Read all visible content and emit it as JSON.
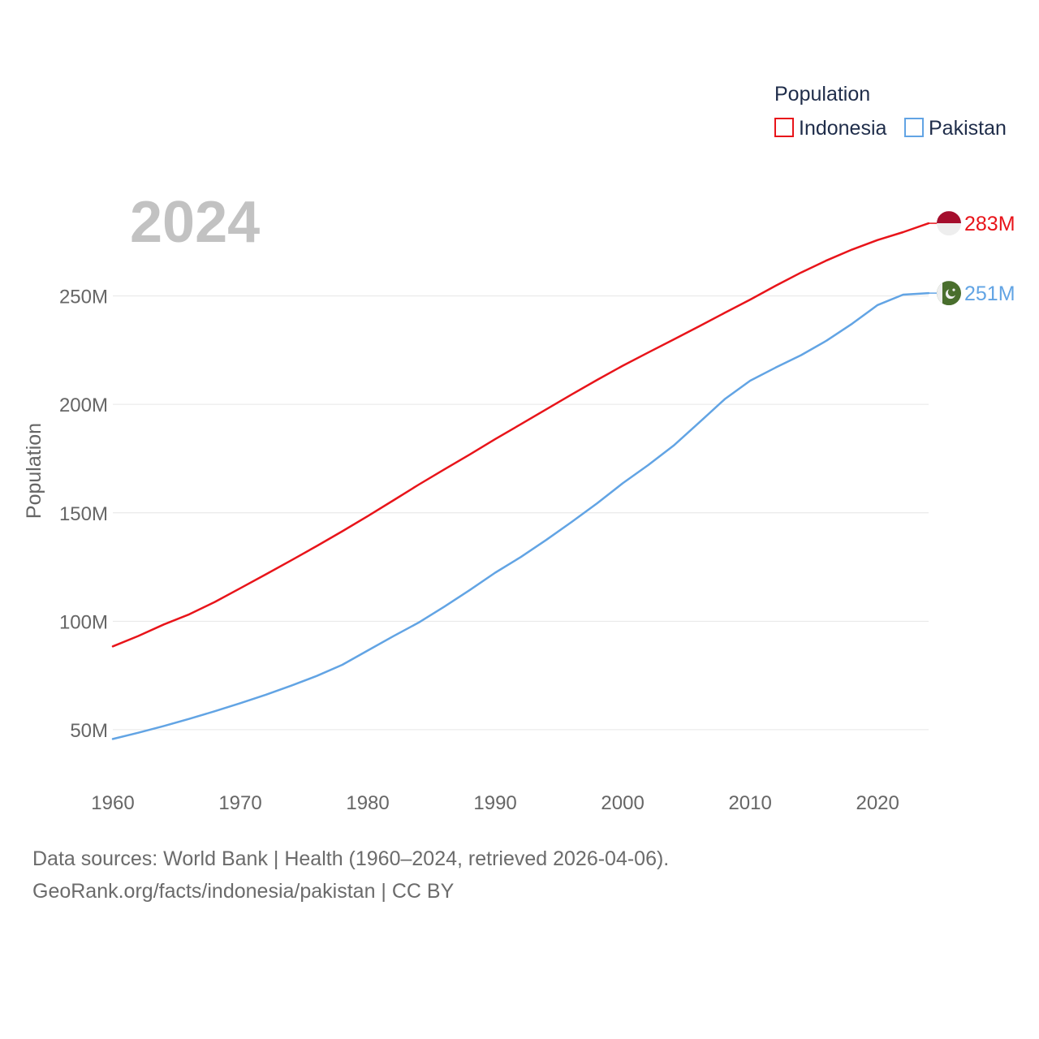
{
  "chart_data": {
    "type": "line",
    "year_label": "2024",
    "ylabel": "Population",
    "xlabel": "",
    "xlim": [
      1960,
      2024
    ],
    "ylim": [
      35,
      300
    ],
    "x_ticks": [
      1960,
      1970,
      1980,
      1990,
      2000,
      2010,
      2020
    ],
    "y_ticks": [
      {
        "value": 50,
        "label": "50M"
      },
      {
        "value": 100,
        "label": "100M"
      },
      {
        "value": 150,
        "label": "150M"
      },
      {
        "value": 200,
        "label": "200M"
      },
      {
        "value": 250,
        "label": "250M"
      }
    ],
    "legend": {
      "title": "Population",
      "position": "top-right",
      "entries": [
        "Indonesia",
        "Pakistan"
      ]
    },
    "units": "millions",
    "series": [
      {
        "name": "Indonesia",
        "color": "#e8141a",
        "end_label": "283M",
        "flag": "indonesia-flag",
        "x": [
          1960,
          1962,
          1964,
          1966,
          1968,
          1970,
          1972,
          1974,
          1976,
          1978,
          1980,
          1982,
          1984,
          1986,
          1988,
          1990,
          1992,
          1994,
          1996,
          1998,
          2000,
          2002,
          2004,
          2006,
          2008,
          2010,
          2012,
          2014,
          2016,
          2018,
          2020,
          2022,
          2024
        ],
        "values": [
          88.4,
          93.2,
          98.5,
          103.2,
          108.9,
          115.2,
          121.6,
          128.1,
          134.7,
          141.5,
          148.5,
          155.7,
          163.0,
          170.0,
          176.9,
          184.0,
          190.8,
          197.7,
          204.6,
          211.3,
          217.8,
          223.9,
          229.9,
          236.0,
          242.2,
          248.3,
          254.7,
          260.8,
          266.4,
          271.4,
          275.8,
          279.4,
          283.5
        ]
      },
      {
        "name": "Pakistan",
        "color": "#62a4e4",
        "end_label": "251M",
        "flag": "pakistan-flag",
        "x": [
          1960,
          1962,
          1964,
          1966,
          1968,
          1970,
          1972,
          1974,
          1976,
          1978,
          1980,
          1982,
          1984,
          1986,
          1988,
          1990,
          1992,
          1994,
          1996,
          1998,
          2000,
          2002,
          2004,
          2006,
          2008,
          2010,
          2012,
          2014,
          2016,
          2018,
          2020,
          2022,
          2024
        ],
        "values": [
          45.7,
          48.6,
          51.7,
          55.0,
          58.5,
          62.2,
          66.1,
          70.3,
          74.8,
          79.9,
          86.5,
          93.1,
          99.4,
          106.7,
          114.4,
          122.4,
          129.6,
          137.5,
          145.8,
          154.4,
          163.6,
          172.0,
          181.0,
          191.6,
          202.4,
          210.9,
          217.0,
          222.7,
          229.4,
          237.2,
          245.8,
          250.6,
          251.3
        ]
      }
    ]
  },
  "source": {
    "line1": "Data sources: World Bank | Health (1960–2024, retrieved 2026-04-06).",
    "line2": "GeoRank.org/facts/indonesia/pakistan | CC BY"
  }
}
